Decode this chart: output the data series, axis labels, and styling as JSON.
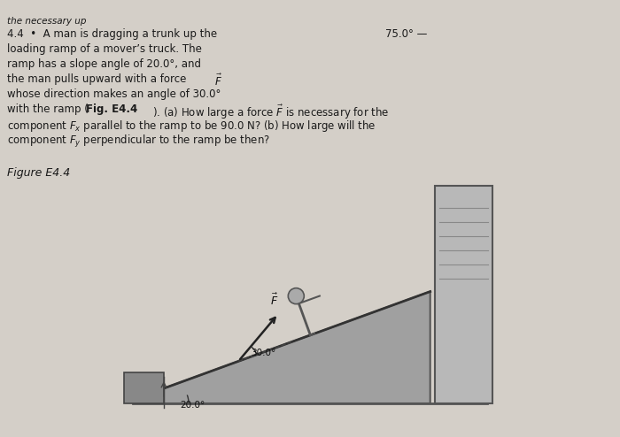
{
  "bg_color": "#d4cfc8",
  "text_color": "#1a1a1a",
  "title_text": "the necessary up",
  "problem_text_lines": [
    "4.4  •  A man is dragging a trunk up the",
    "loading ramp of a mover’s truck. The",
    "ramp has a slope angle of 20.0°, and",
    "the man pulls upward with a force F⃗",
    "whose direction makes an angle of 30.0°",
    "with the ramp (Fig. E4.4). (a) How large a force F⃗ is necessary for the",
    "component Fₓ parallel to the ramp to be 90.0 N? (b) How large will the",
    "component Fᵧ perpendicular to the ramp be then?"
  ],
  "figure_label": "Figure E4.4",
  "angle_75": "75.0°",
  "angle_30": "30.0°",
  "angle_20": "20.0°",
  "ramp_color": "#808080",
  "figure_bg": "#c8c0b4"
}
